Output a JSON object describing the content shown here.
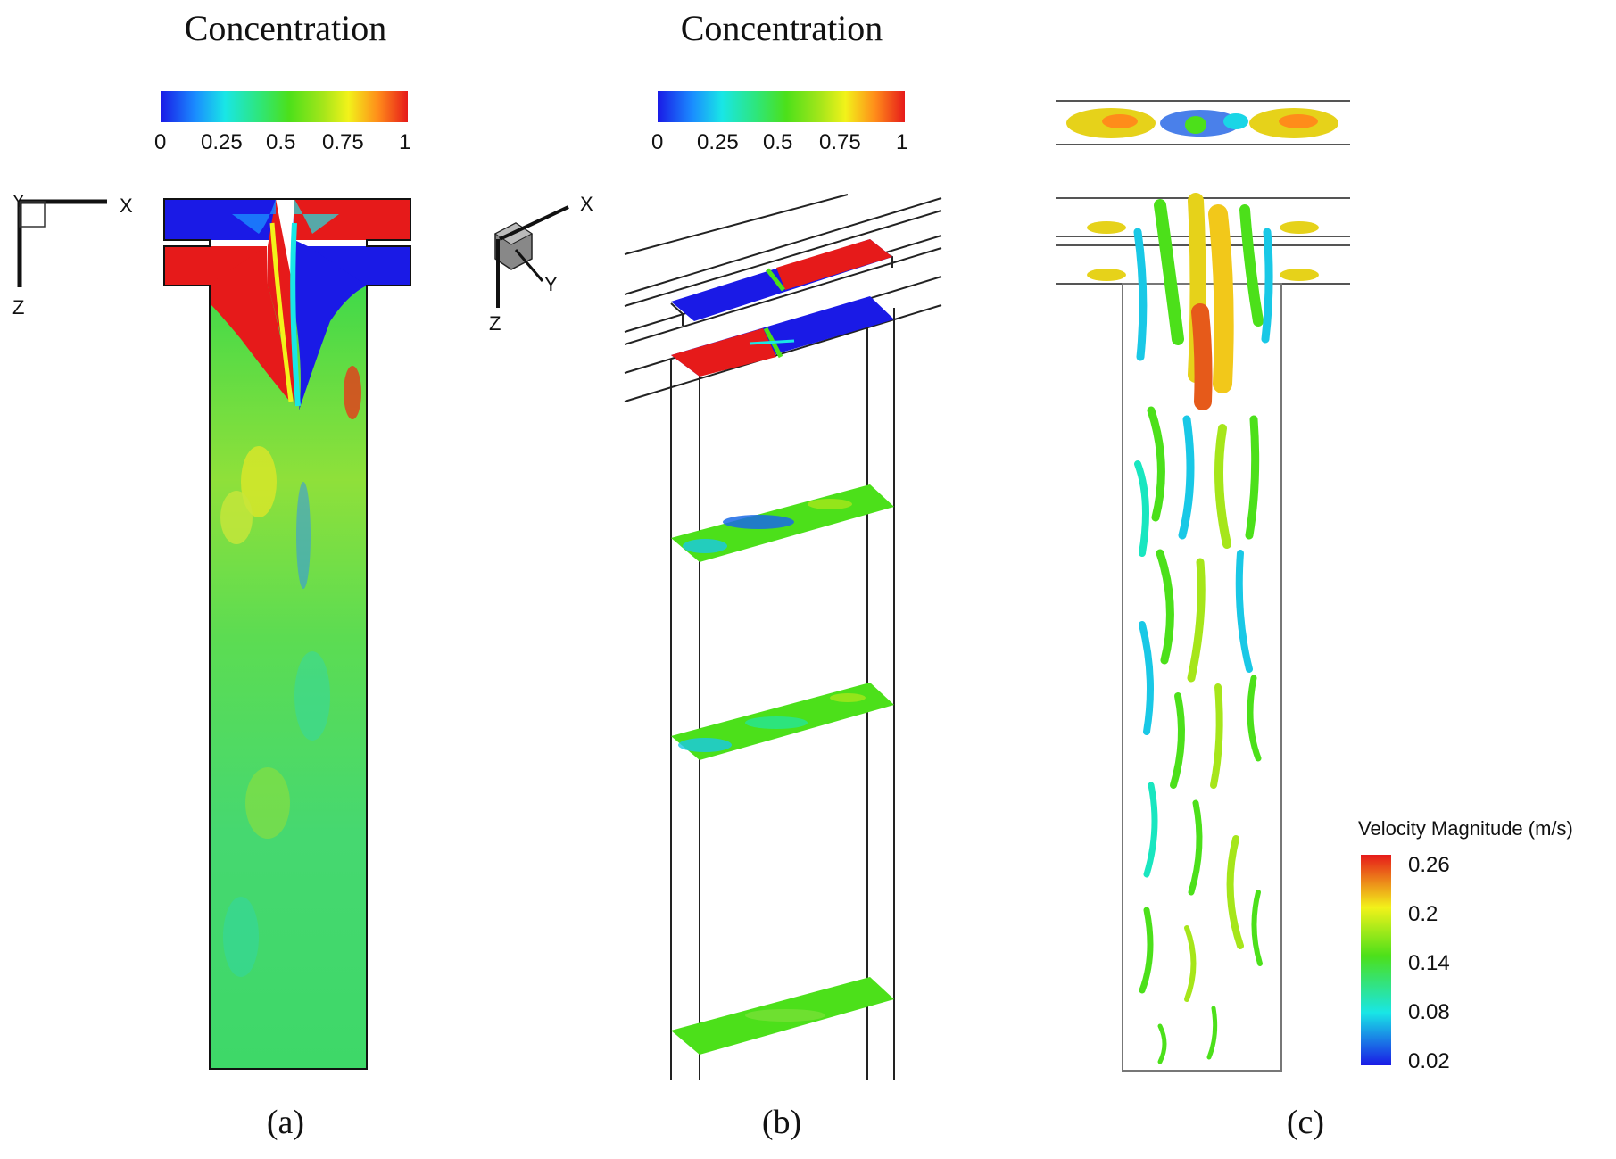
{
  "panel_a": {
    "title": "Concentration",
    "colorbar_ticks": [
      "0",
      "0.25",
      "0.5",
      "0.75",
      "1"
    ],
    "axes": {
      "horizontal": "X",
      "vertical": "Z",
      "out_of_plane": "Y"
    },
    "caption": "(a)"
  },
  "panel_b": {
    "title": "Concentration",
    "colorbar_ticks": [
      "0",
      "0.25",
      "0.5",
      "0.75",
      "1"
    ],
    "axes": {
      "x": "X",
      "y": "Y",
      "z": "Z"
    },
    "caption": "(b)"
  },
  "panel_c": {
    "legend_title": "Velocity Magnitude (m/s)",
    "legend_ticks": [
      "0.26",
      "0.2",
      "0.14",
      "0.08",
      "0.02"
    ],
    "caption": "(c)"
  },
  "colors": {
    "low": "#1a1ae6",
    "mid": "#4ce01a",
    "high": "#e61a1a",
    "cyan": "#19e6e6",
    "yellow": "#f2f21a"
  }
}
